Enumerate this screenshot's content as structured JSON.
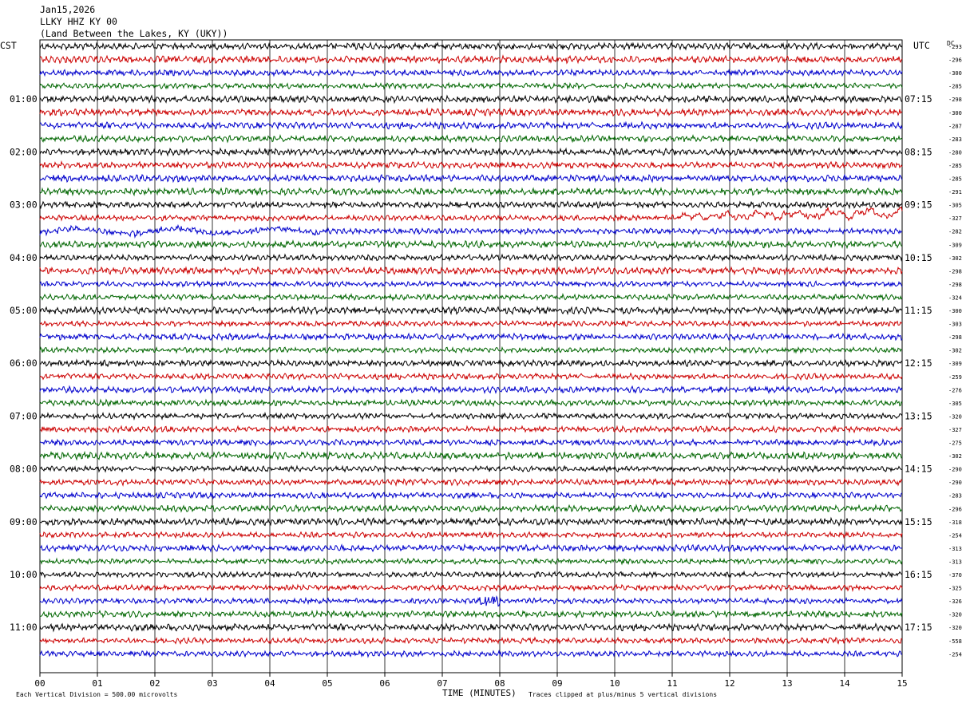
{
  "header": {
    "date": "Jan15,2026",
    "station": "LLKY HHZ KY 00",
    "location": "(Land Between the Lakes, KY (UKY))"
  },
  "axes": {
    "left_label": "CST",
    "right_label": "UTC",
    "dc_label": "DC",
    "x_title": "TIME (MINUTES)"
  },
  "footer": {
    "scale_note": "Each Vertical Division =  500.00 microvolts",
    "clip_note": "Traces clipped at plus/minus 5 vertical divisions"
  },
  "chart_data": {
    "type": "line",
    "title": "LLKY HHZ KY 00",
    "xlabel": "TIME (MINUTES)",
    "xlim": [
      0,
      15
    ],
    "x_ticks": [
      "00",
      "01",
      "02",
      "03",
      "04",
      "05",
      "06",
      "07",
      "08",
      "09",
      "10",
      "11",
      "12",
      "13",
      "14",
      "15"
    ],
    "left_time_labels": [
      "01:00",
      "02:00",
      "03:00",
      "04:00",
      "05:00",
      "06:00",
      "07:00",
      "08:00",
      "09:00",
      "10:00",
      "11:00"
    ],
    "right_time_labels": [
      "07:15",
      "08:15",
      "09:15",
      "10:15",
      "11:15",
      "12:15",
      "13:15",
      "14:15",
      "15:15",
      "16:15",
      "17:15"
    ],
    "trace_colors": [
      "#000000",
      "#cc0000",
      "#0000cc",
      "#006600"
    ],
    "dc_offsets": [
      "-293",
      "-296",
      "-300",
      "-285",
      "-298",
      "-300",
      "-287",
      "-283",
      "-280",
      "-285",
      "-285",
      "-291",
      "-305",
      "-327",
      "-282",
      "-309",
      "-302",
      "-298",
      "-298",
      "-324",
      "-300",
      "-303",
      "-298",
      "-302",
      "-309",
      "-259",
      "-276",
      "-305",
      "-320",
      "-327",
      "-275",
      "-302",
      "-290",
      "-290",
      "-283",
      "-296",
      "-318",
      "-254",
      "-313",
      "-313",
      "-370",
      "-325",
      "-326",
      "-320",
      "-320",
      "-558",
      "-254"
    ],
    "events": [
      {
        "trace": 13,
        "x_start": 11.0,
        "x_end": 15.0,
        "description": "large long-period oscillations"
      },
      {
        "trace": 42,
        "x_start": 7.6,
        "x_end": 8.0,
        "description": "short burst"
      }
    ]
  }
}
